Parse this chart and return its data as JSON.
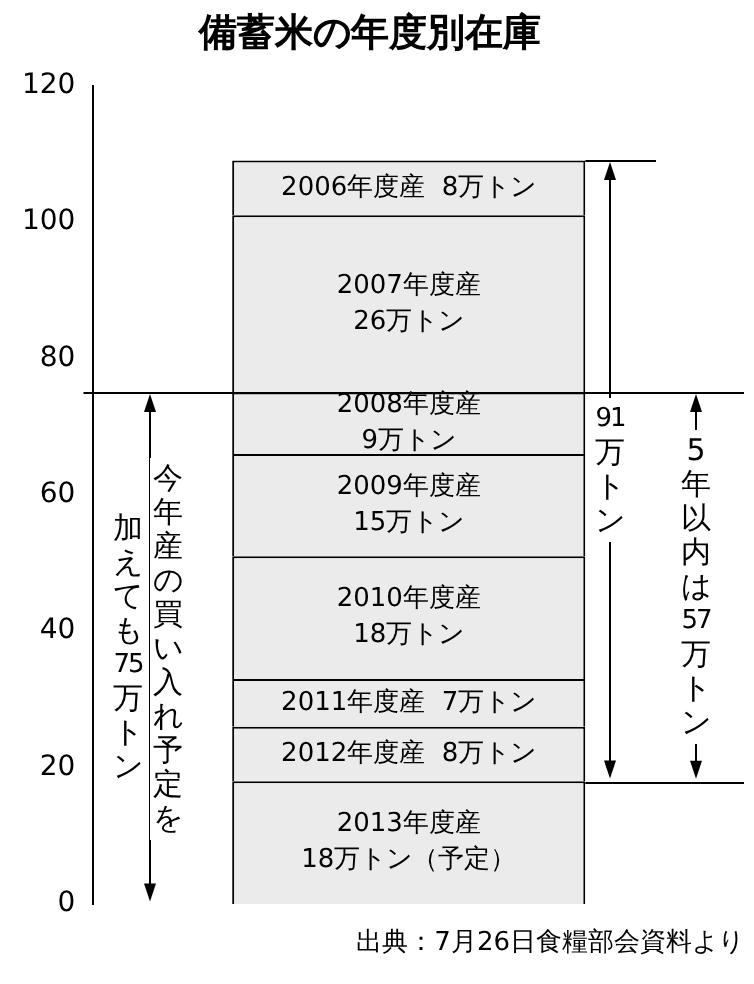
{
  "chart_data": {
    "type": "bar",
    "title": "備蓄米の年度別在庫",
    "categories": [
      null
    ],
    "stacked": true,
    "legend": false,
    "grid": false,
    "ylim": [
      0,
      120
    ],
    "yticks": [
      0,
      20,
      40,
      60,
      80,
      100,
      120
    ],
    "series": [
      {
        "name": "2013年度産",
        "color": "#ebebeb",
        "values": [
          18
        ],
        "value_labels": [
          "18万トン（予定）"
        ]
      },
      {
        "name": "2012年度産",
        "color": "#ebebeb",
        "values": [
          8
        ],
        "value_labels": [
          "8万トン"
        ]
      },
      {
        "name": "2011年度産",
        "color": "#ebebeb",
        "values": [
          7
        ],
        "value_labels": [
          "7万トン"
        ]
      },
      {
        "name": "2010年度産",
        "color": "#ebebeb",
        "values": [
          18
        ],
        "value_labels": [
          "18万トン"
        ]
      },
      {
        "name": "2009年度産",
        "color": "#ebebeb",
        "values": [
          15
        ],
        "value_labels": [
          "15万トン"
        ]
      },
      {
        "name": "2008年度産",
        "color": "#ebebeb",
        "values": [
          9
        ],
        "value_labels": [
          "9万トン"
        ]
      },
      {
        "name": "2007年度産",
        "color": "#ebebeb",
        "values": [
          26
        ],
        "value_labels": [
          "26万トン"
        ]
      },
      {
        "name": "2006年度産",
        "color": "#ebebeb",
        "values": [
          8
        ],
        "value_labels": [
          "8万トン"
        ]
      }
    ],
    "ref_lines": [
      {
        "axis": "y",
        "value": 109
      },
      {
        "axis": "y",
        "value": 75
      },
      {
        "axis": "y",
        "value": 18
      }
    ],
    "annotations": [
      "出典：7月26日食糧部会資料より",
      "今年産の買い入れ予定を",
      "加えても75万トン",
      "91万トン",
      "5年以内は57万トン"
    ]
  }
}
